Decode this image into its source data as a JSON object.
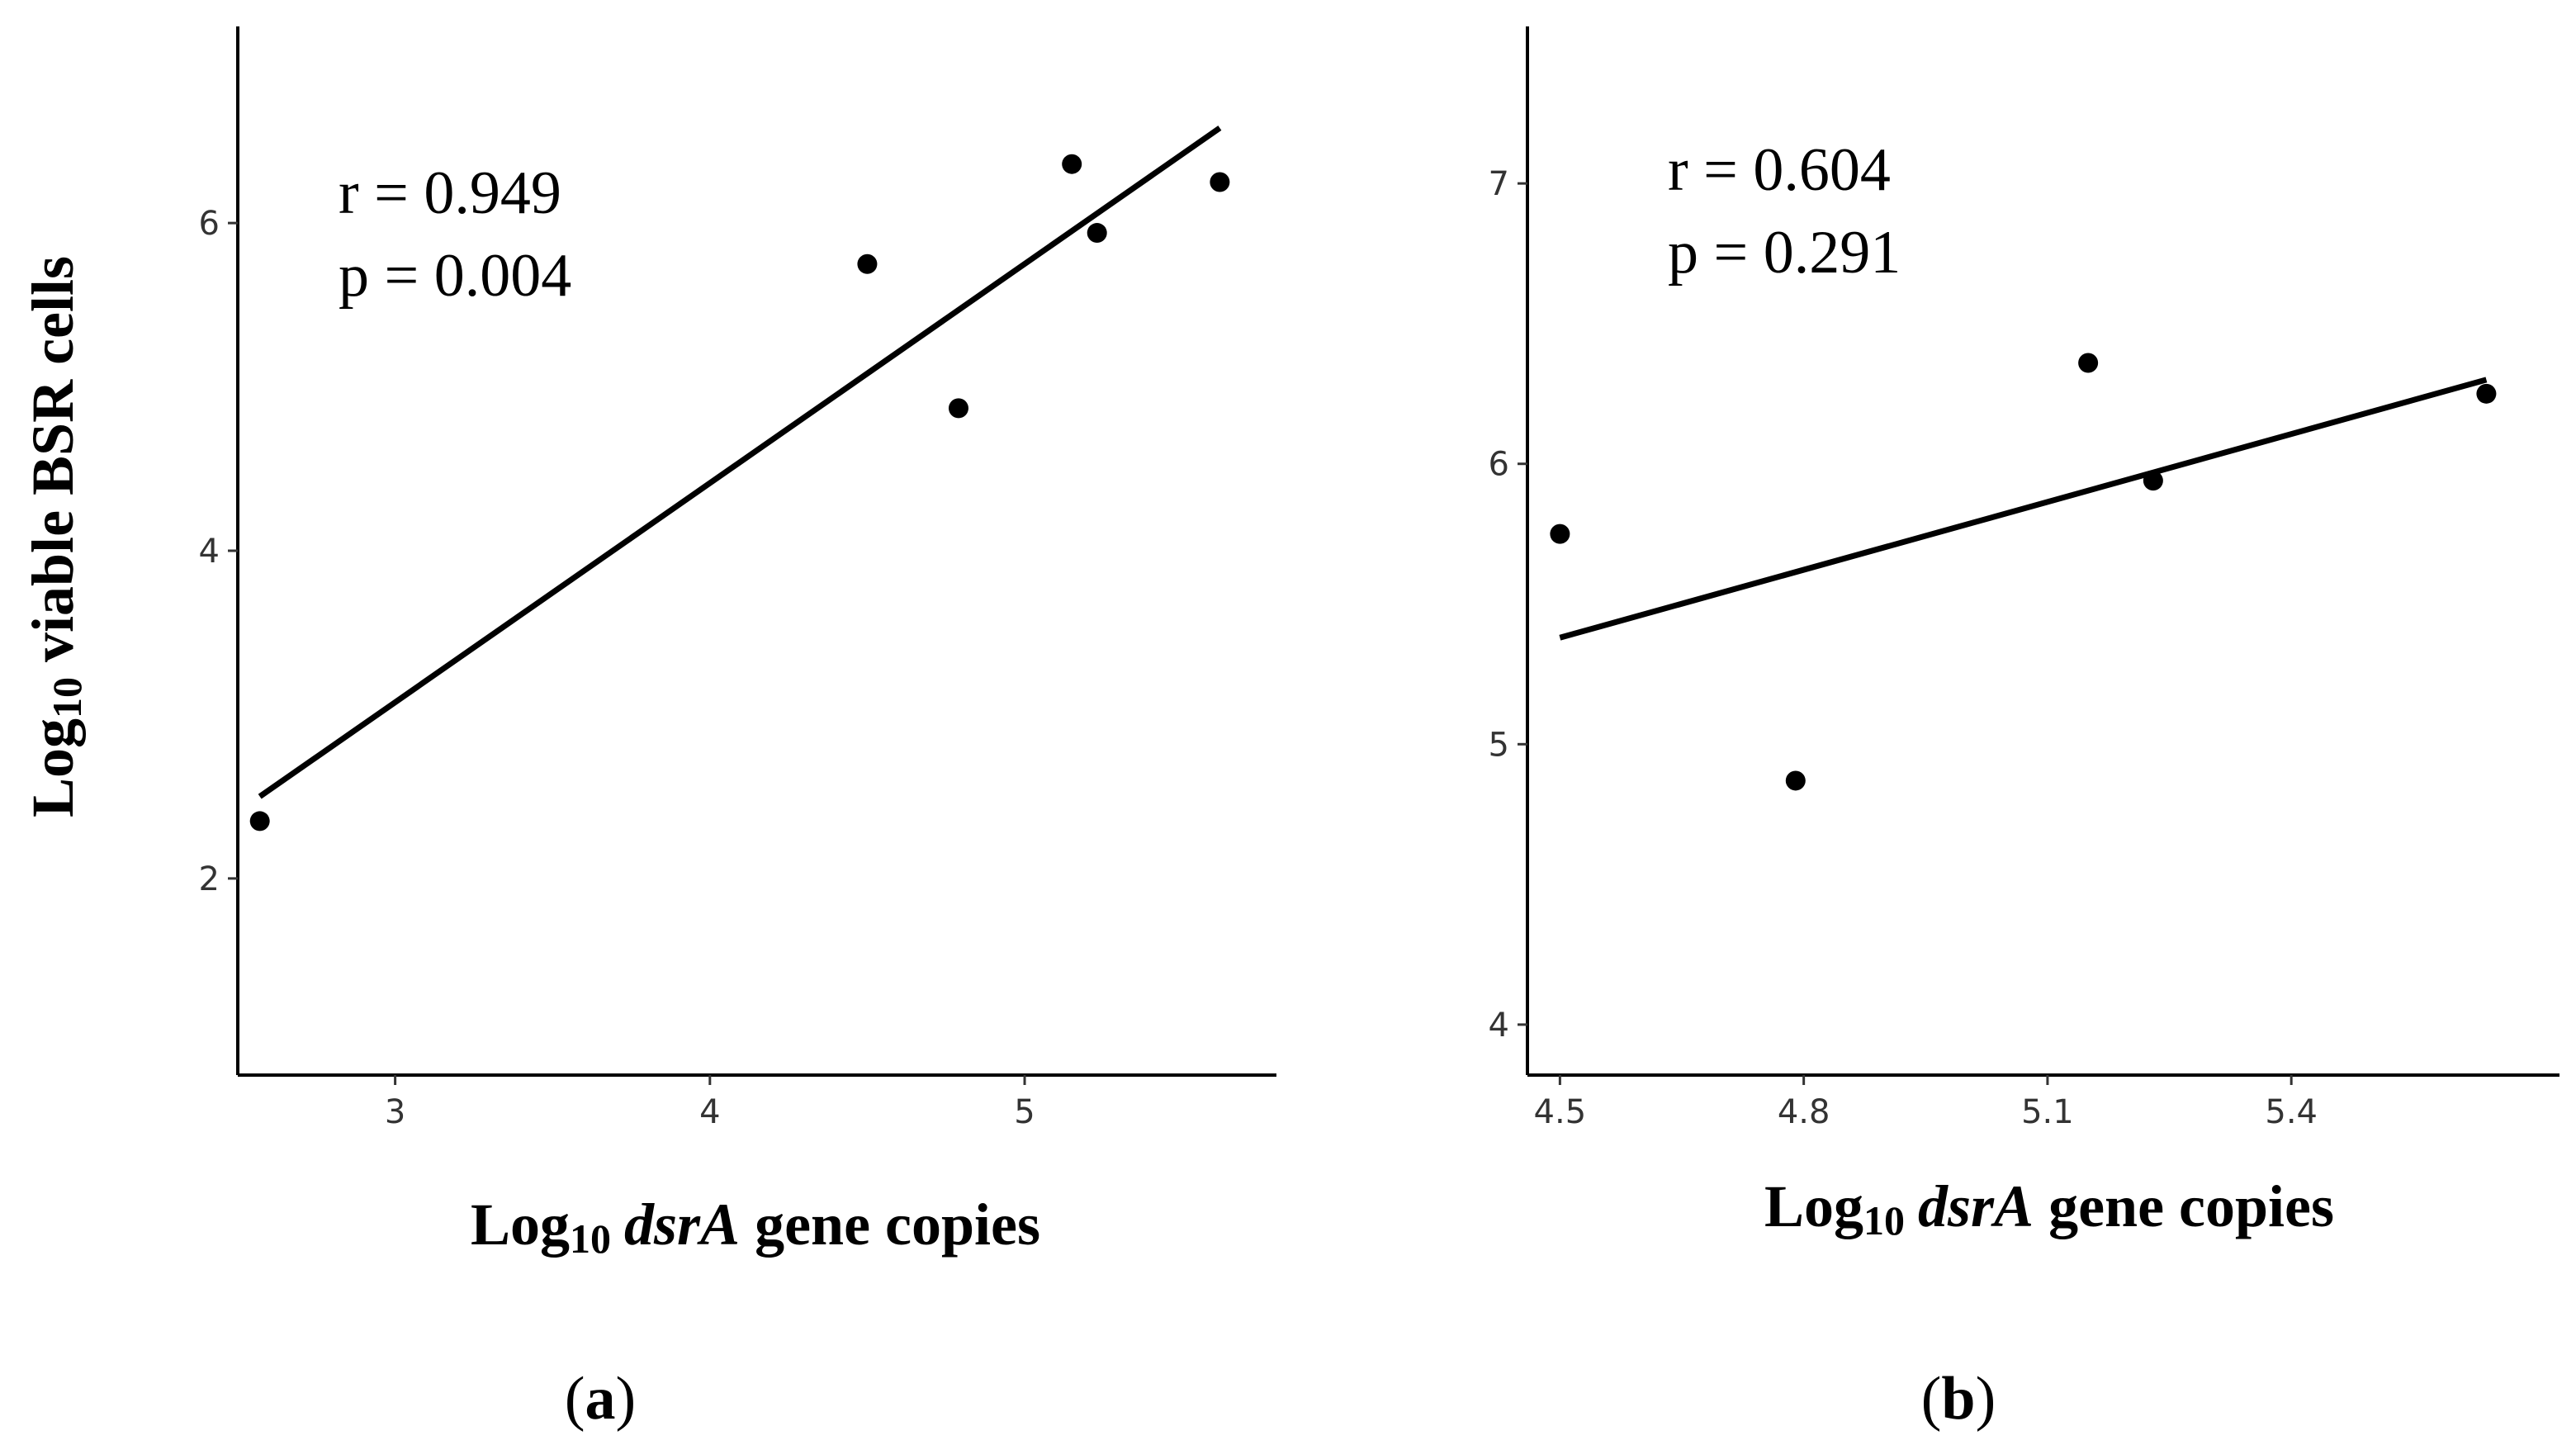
{
  "chart_data": [
    {
      "type": "scatter",
      "panel_label": "(a)",
      "panel_letter": "a",
      "ylabel_main": "Log",
      "ylabel_sub": "10",
      "ylabel_rest": " viable BSR cells",
      "xlabel_main": "Log",
      "xlabel_sub": "10",
      "xlabel_italic": "dsrA",
      "xlabel_rest": " gene copies",
      "stat_r": "r = 0.949",
      "stat_p": "p = 0.004",
      "xlim": [
        2.5,
        5.8
      ],
      "ylim": [
        0.8,
        7.2
      ],
      "xticks": [
        "3",
        "4",
        "5"
      ],
      "yticks": [
        "2",
        "4",
        "6"
      ],
      "grid": false,
      "points": [
        {
          "x": 2.57,
          "y": 2.35
        },
        {
          "x": 4.5,
          "y": 5.75
        },
        {
          "x": 4.79,
          "y": 4.87
        },
        {
          "x": 5.15,
          "y": 6.36
        },
        {
          "x": 5.23,
          "y": 5.94
        },
        {
          "x": 5.62,
          "y": 6.25
        }
      ],
      "fit_line": {
        "x": [
          2.57,
          5.62
        ],
        "y": [
          2.5,
          6.58
        ]
      }
    },
    {
      "type": "scatter",
      "panel_label": "(b)",
      "panel_letter": "b",
      "xlabel_main": "Log",
      "xlabel_sub": "10",
      "xlabel_italic": "dsrA",
      "xlabel_rest": " gene copies",
      "stat_r": "r = 0.604",
      "stat_p": "p = 0.291",
      "xlim": [
        4.46,
        5.73
      ],
      "ylim": [
        3.82,
        7.56
      ],
      "xticks": [
        "4.5",
        "4.8",
        "5.1",
        "5.4"
      ],
      "yticks": [
        "4",
        "5",
        "6",
        "7"
      ],
      "grid": false,
      "points": [
        {
          "x": 4.5,
          "y": 5.75
        },
        {
          "x": 4.79,
          "y": 4.87
        },
        {
          "x": 5.15,
          "y": 6.36
        },
        {
          "x": 5.23,
          "y": 5.94
        },
        {
          "x": 5.64,
          "y": 6.25
        }
      ],
      "fit_line": {
        "x": [
          4.5,
          5.64
        ],
        "y": [
          5.38,
          6.3
        ]
      }
    }
  ]
}
